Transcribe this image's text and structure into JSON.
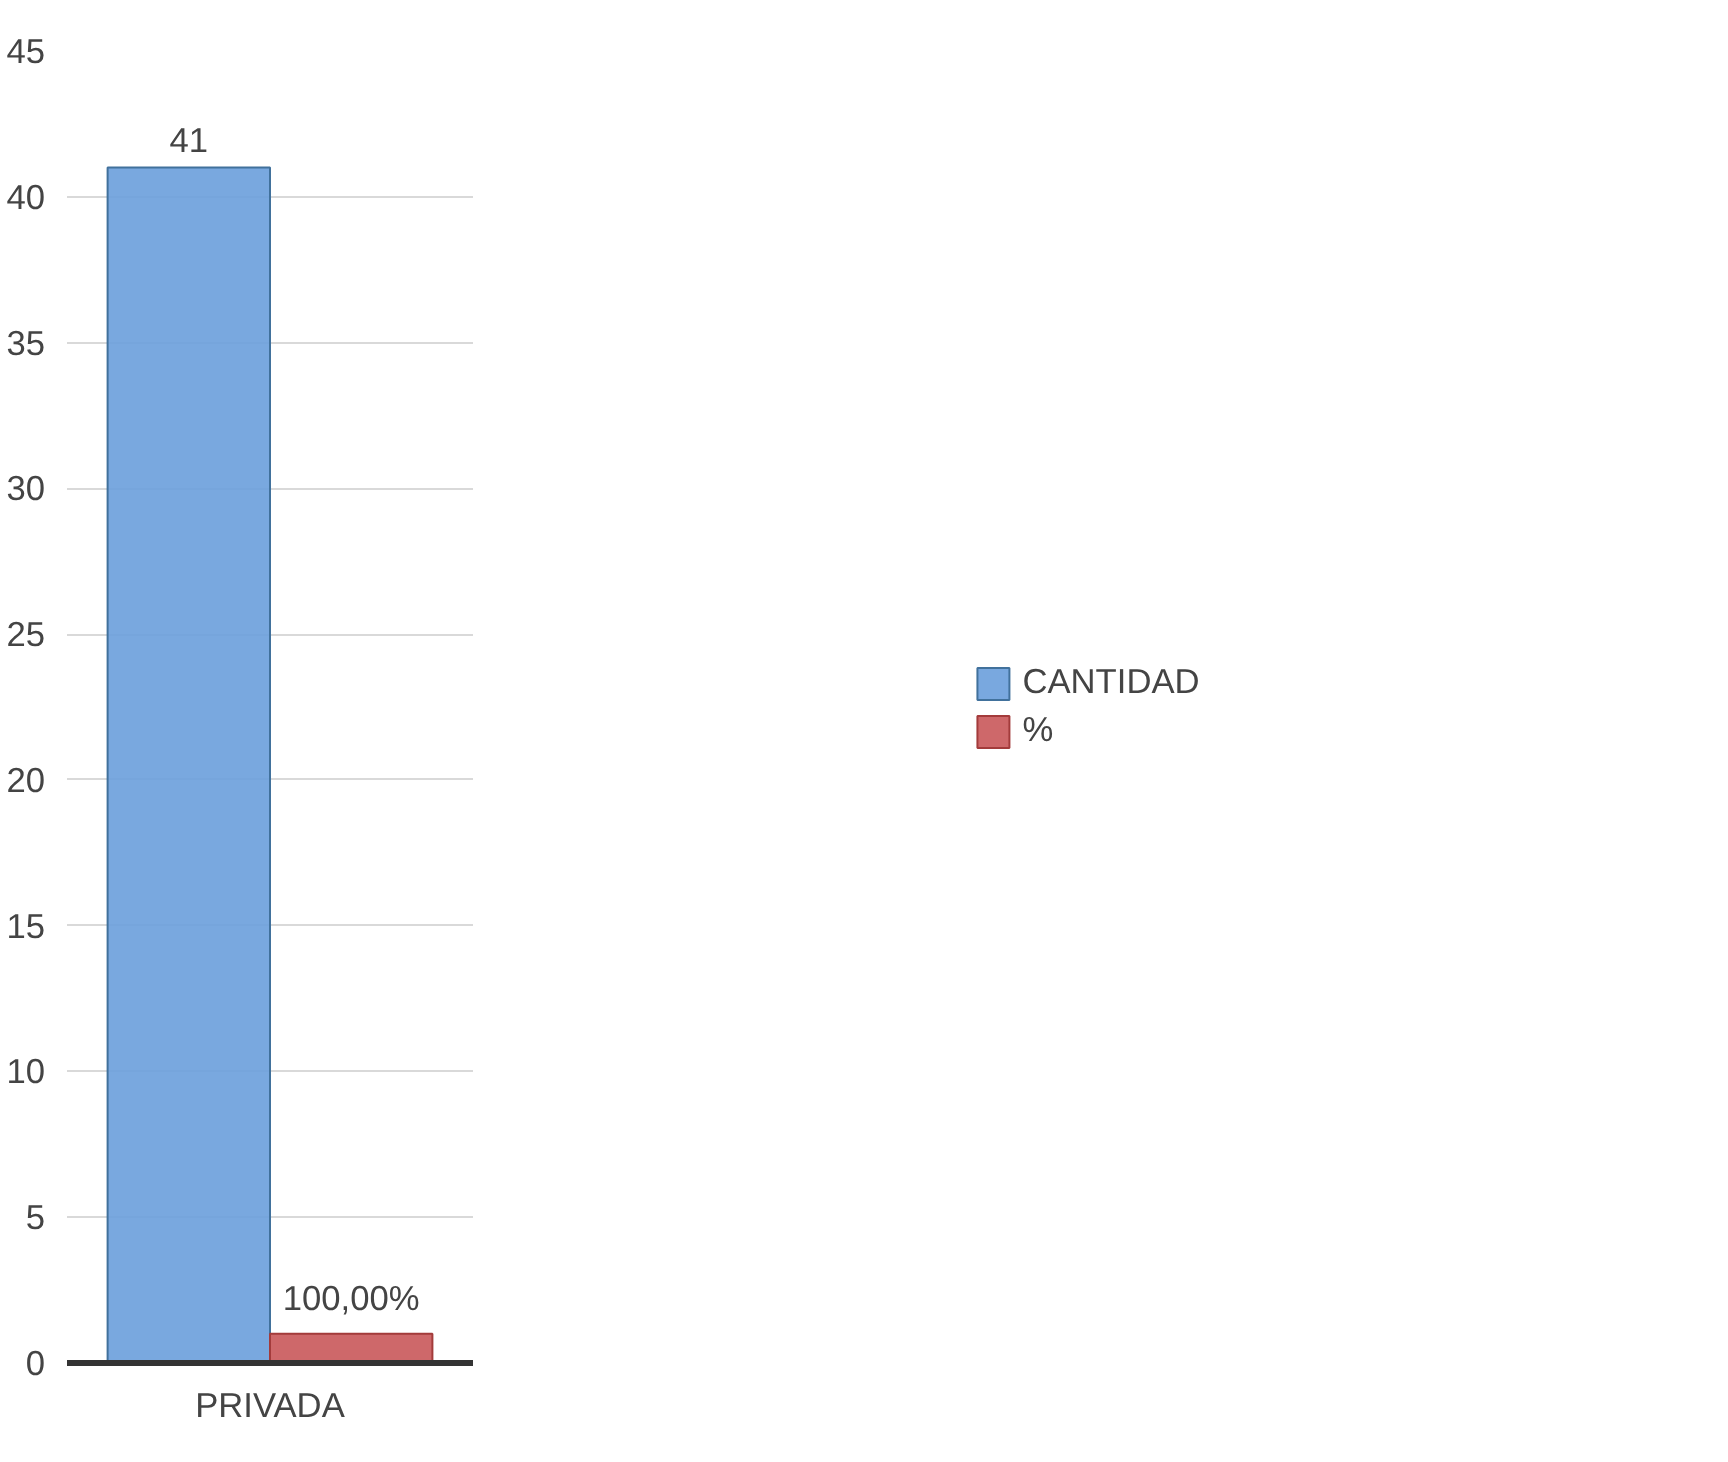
{
  "chart_data": {
    "type": "bar",
    "categories": [
      "PRIVADA"
    ],
    "series": [
      {
        "name": "CANTIDAD",
        "color": "#6a9fdc",
        "values": [
          41
        ],
        "value_labels": [
          "41"
        ]
      },
      {
        "name": "%",
        "color": "#c9585a",
        "values": [
          1
        ],
        "value_labels": [
          "100,00%"
        ]
      }
    ],
    "ylim": [
      0,
      45
    ],
    "yticks": [
      0,
      5,
      10,
      15,
      20,
      25,
      30,
      35,
      40,
      45
    ],
    "grid": "y",
    "legend": "right"
  }
}
